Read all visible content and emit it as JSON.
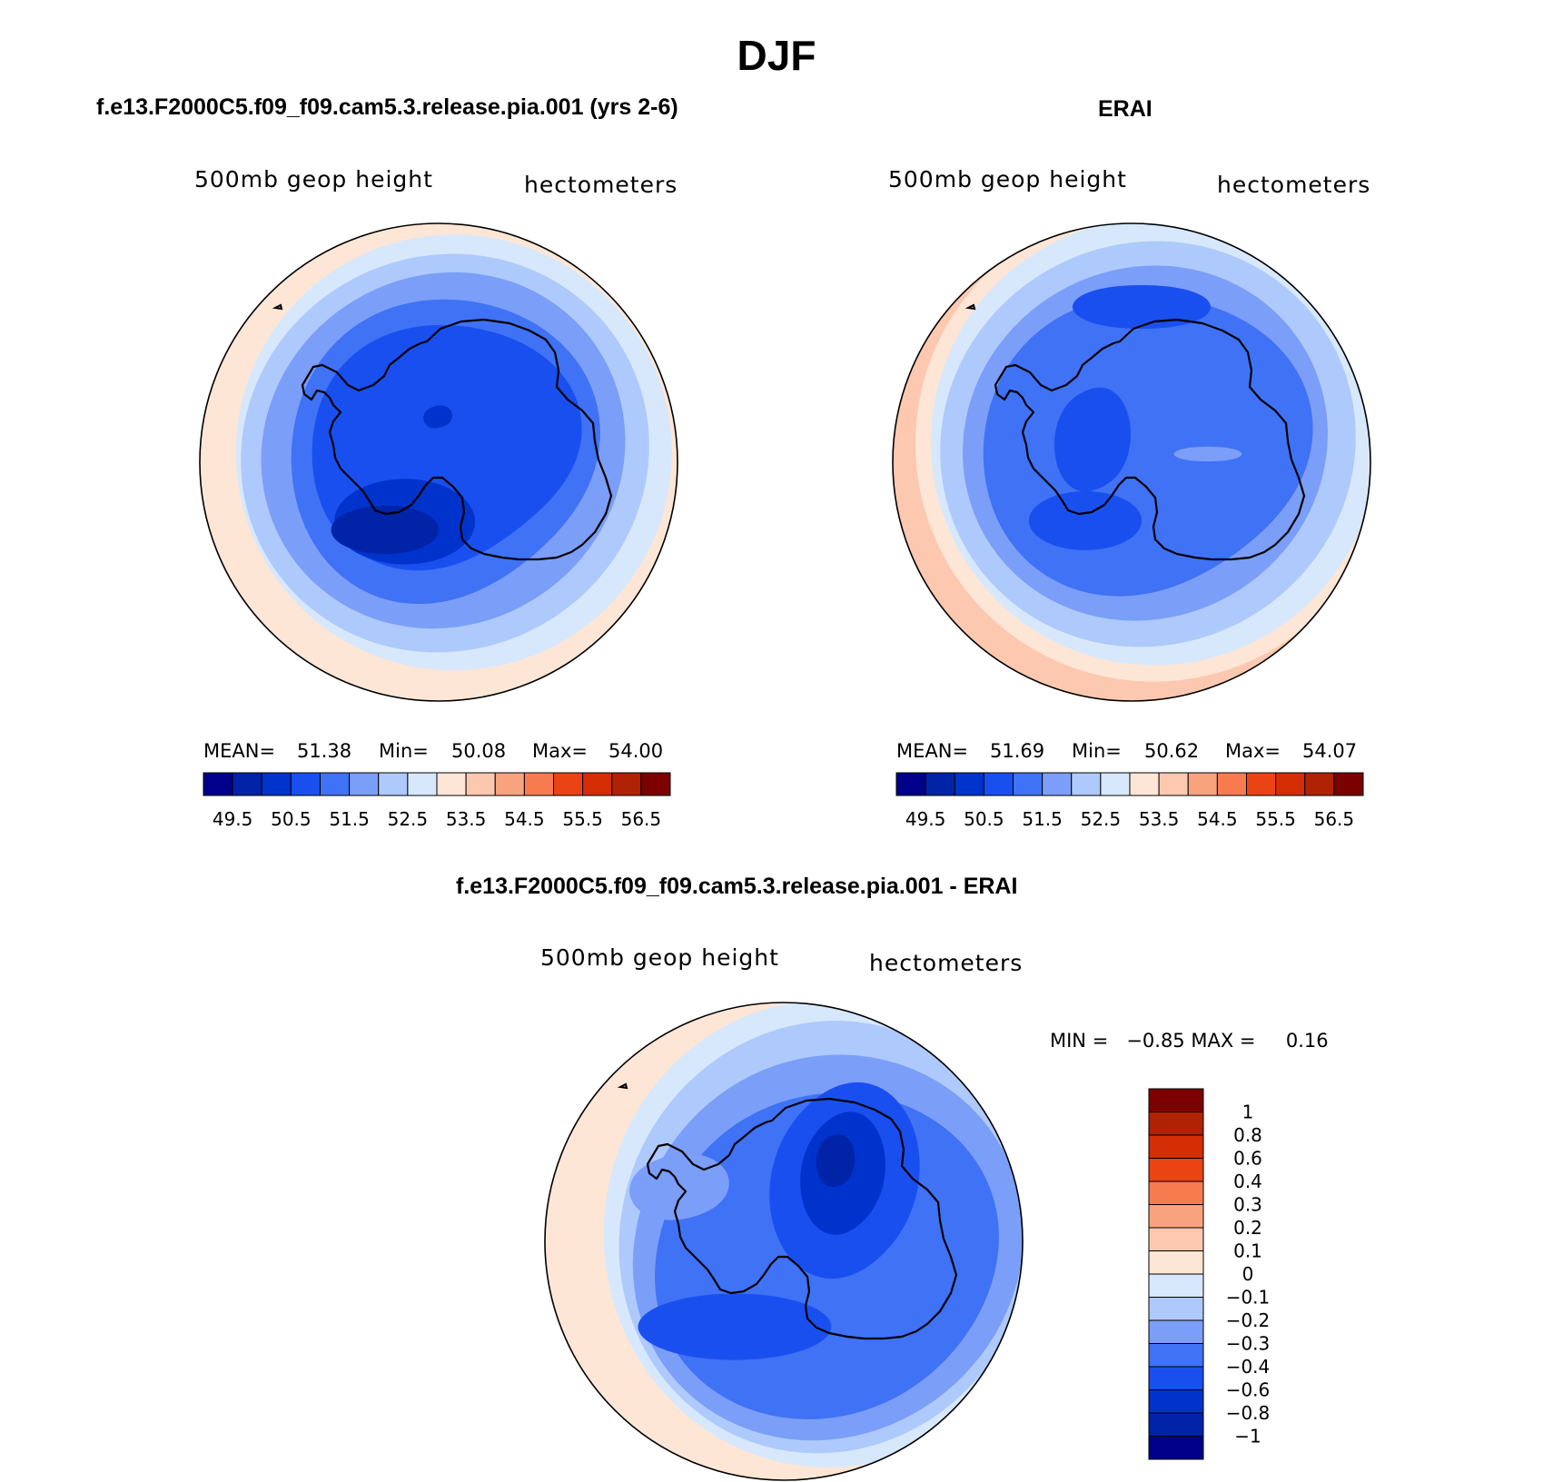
{
  "figure": {
    "title": "DJF"
  },
  "colors": {
    "model_levels": [
      "#00008a",
      "#0023a8",
      "#0033cc",
      "#1a4fef",
      "#3f72f5",
      "#7b9ef8",
      "#aec9fb",
      "#d7e8fc",
      "#fde6d6",
      "#fcc8b0",
      "#f9a37e",
      "#f77b4f",
      "#ea4314",
      "#d52d06",
      "#b02204",
      "#7d0000"
    ],
    "diff_levels": [
      "#00008a",
      "#0023a8",
      "#0033cc",
      "#1a4fef",
      "#3f72f5",
      "#7b9ef8",
      "#aec9fb",
      "#d7e8fc",
      "#fde6d6",
      "#fcc8b0",
      "#f9a37e",
      "#f77b4f",
      "#ea4314",
      "#d52d06",
      "#b02204",
      "#7d0000"
    ],
    "coast": "#000000"
  },
  "panels": {
    "model": {
      "title": "f.e13.F2000C5.f09_f09.cam5.3.release.pia.001 (yrs 2-6)",
      "var_label": "500mb geop height",
      "unit_label": "hectometers",
      "mean_label": "MEAN=",
      "mean_value": "51.38",
      "min_label": "Min=",
      "min_value": "50.08",
      "max_label": "Max=",
      "max_value": "54.00"
    },
    "obs": {
      "title": "ERAI",
      "var_label": "500mb geop height",
      "unit_label": "hectometers",
      "mean_label": "MEAN=",
      "mean_value": "51.69",
      "min_label": "Min=",
      "min_value": "50.62",
      "max_label": "Max=",
      "max_value": "54.07"
    },
    "diff": {
      "title": "f.e13.F2000C5.f09_f09.cam5.3.release.pia.001 - ERAI",
      "var_label": "500mb geop height",
      "unit_label": "hectometers",
      "minmax_text": "MIN =   −0.85 MAX =     0.16"
    }
  },
  "chart_data": [
    {
      "type": "heatmap",
      "projection": "south-polar-stereographic",
      "title": "f.e13.F2000C5.f09_f09.cam5.3.release.pia.001 (yrs 2-6)",
      "variable": "500mb geop height",
      "units": "hectometers",
      "mean": 51.38,
      "min": 50.08,
      "max": 54.0,
      "contour_levels": [
        49.5,
        50,
        50.5,
        51,
        51.5,
        52,
        52.5,
        53,
        53.5,
        54,
        54.5,
        55,
        55.5,
        56,
        56.5
      ],
      "colorbar_labels": [
        "49.5",
        "50.5",
        "51.5",
        "52.5",
        "53.5",
        "54.5",
        "55.5",
        "56.5"
      ],
      "legend": "bottom"
    },
    {
      "type": "heatmap",
      "projection": "south-polar-stereographic",
      "title": "ERAI",
      "variable": "500mb geop height",
      "units": "hectometers",
      "mean": 51.69,
      "min": 50.62,
      "max": 54.07,
      "contour_levels": [
        49.5,
        50,
        50.5,
        51,
        51.5,
        52,
        52.5,
        53,
        53.5,
        54,
        54.5,
        55,
        55.5,
        56,
        56.5
      ],
      "colorbar_labels": [
        "49.5",
        "50.5",
        "51.5",
        "52.5",
        "53.5",
        "54.5",
        "55.5",
        "56.5"
      ],
      "legend": "bottom"
    },
    {
      "type": "heatmap",
      "projection": "south-polar-stereographic",
      "title": "f.e13.F2000C5.f09_f09.cam5.3.release.pia.001 - ERAI",
      "variable": "500mb geop height",
      "units": "hectometers",
      "min": -0.85,
      "max": 0.16,
      "colorbar_labels": [
        "1",
        "0.8",
        "0.6",
        "0.4",
        "0.3",
        "0.2",
        "0.1",
        "0",
        "−0.1",
        "−0.2",
        "−0.3",
        "−0.4",
        "−0.6",
        "−0.8",
        "−1"
      ],
      "legend": "right"
    }
  ]
}
